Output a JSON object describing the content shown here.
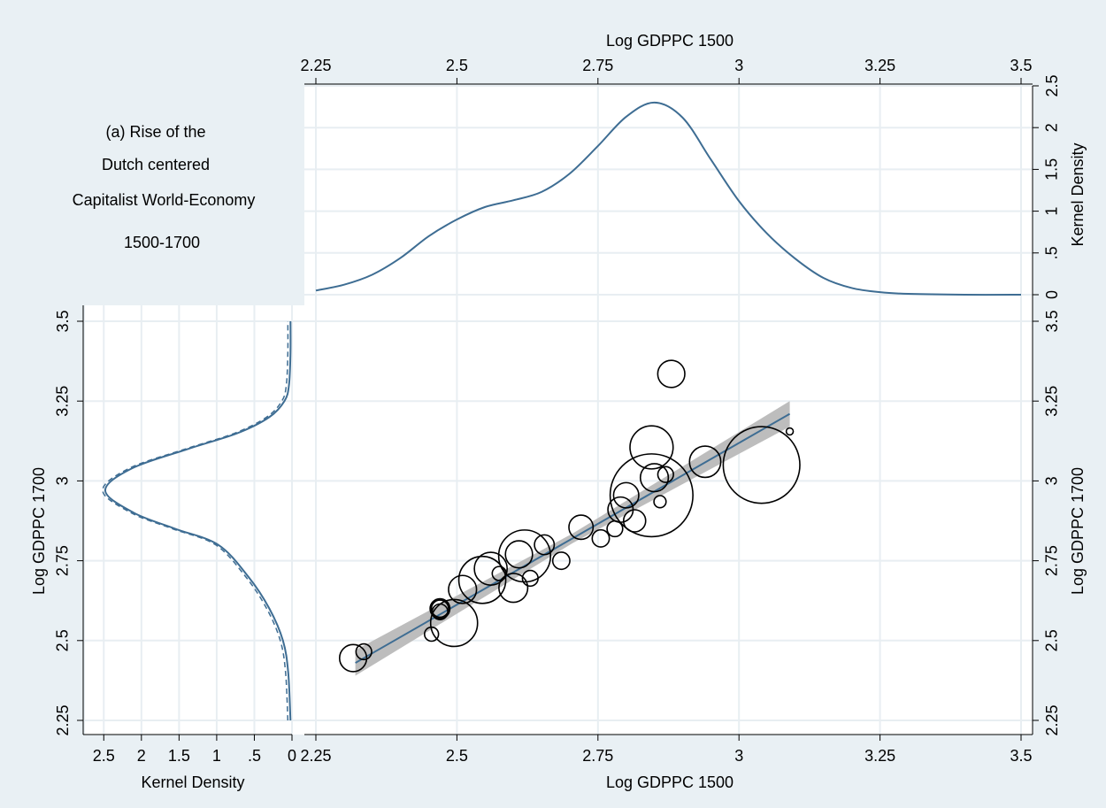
{
  "panel_title": {
    "lines": [
      "(a) Rise of the",
      "Dutch centered",
      "Capitalist World-Economy",
      "1500-1700"
    ]
  },
  "colors": {
    "frame_bg": "#e9f0f4",
    "panel_bg": "#ffffff",
    "grid": "#e8eef2",
    "line": "#3e6d93",
    "ci_band": "#bdbdbd",
    "circle": "#000000"
  },
  "chart_data": [
    {
      "type": "line",
      "name": "top-density",
      "xlabel": "Log GDPPC 1500",
      "ylabel": "Kernel Density",
      "xlim": [
        2.25,
        3.5
      ],
      "ylim": [
        0,
        2.5
      ],
      "xticks": [
        "2.25",
        "2.5",
        "2.75",
        "3",
        "3.25",
        "3.5"
      ],
      "yticks": [
        "0",
        ".5",
        "1",
        "1.5",
        "2",
        "2.5"
      ],
      "series": [
        {
          "x": [
            2.25,
            2.3,
            2.35,
            2.4,
            2.45,
            2.5,
            2.55,
            2.6,
            2.65,
            2.7,
            2.75,
            2.8,
            2.85,
            2.9,
            2.95,
            3.0,
            3.05,
            3.1,
            3.15,
            3.2,
            3.25,
            3.3,
            3.4,
            3.5
          ],
          "y": [
            0.05,
            0.12,
            0.24,
            0.44,
            0.7,
            0.9,
            1.05,
            1.13,
            1.23,
            1.45,
            1.78,
            2.13,
            2.3,
            2.12,
            1.62,
            1.12,
            0.73,
            0.43,
            0.2,
            0.08,
            0.03,
            0.01,
            0,
            0
          ]
        }
      ]
    },
    {
      "type": "line",
      "name": "left-density",
      "xlabel": "Kernel Density",
      "ylabel": "Log GDPPC 1700",
      "xlim": [
        0,
        2.75
      ],
      "ylim": [
        2.25,
        3.5
      ],
      "xticks": [
        "2.5",
        "2",
        "1.5",
        "1",
        ".5",
        "0"
      ],
      "yticks": [
        "2.25",
        "2.5",
        "2.75",
        "3",
        "3.25",
        "3.5"
      ],
      "series": [
        {
          "density": [
            0.02,
            0.05,
            0.12,
            0.3,
            0.58,
            0.98,
            1.55,
            2.1,
            2.48,
            2.12,
            1.38,
            0.72,
            0.3,
            0.1,
            0.04,
            0.02,
            0.02
          ],
          "y": [
            2.25,
            2.4,
            2.5,
            2.6,
            2.7,
            2.8,
            2.85,
            2.9,
            2.97,
            3.04,
            3.1,
            3.15,
            3.2,
            3.25,
            3.3,
            3.4,
            3.5
          ]
        }
      ]
    },
    {
      "type": "scatter",
      "name": "main-scatter",
      "xlabel": "Log GDPPC 1500",
      "ylabel": "Log GDPPC 1700",
      "xlim": [
        2.25,
        3.5
      ],
      "ylim": [
        2.25,
        3.5
      ],
      "xticks": [
        "2.25",
        "2.5",
        "2.75",
        "3",
        "3.25",
        "3.5"
      ],
      "yticks": [
        "2.25",
        "2.5",
        "2.75",
        "3",
        "3.25",
        "3.5"
      ],
      "fit": {
        "x": [
          2.32,
          3.09
        ],
        "y": [
          2.43,
          3.21
        ],
        "ci_half_width": [
          0.04,
          0.015,
          0.04
        ]
      },
      "points": [
        {
          "x": 2.316,
          "y": 2.445,
          "w": 1.5
        },
        {
          "x": 2.335,
          "y": 2.465,
          "w": 0.5
        },
        {
          "x": 2.455,
          "y": 2.52,
          "w": 0.4
        },
        {
          "x": 2.47,
          "y": 2.6,
          "w": 0.8
        },
        {
          "x": 2.47,
          "y": 2.6,
          "w": 0.6
        },
        {
          "x": 2.47,
          "y": 2.59,
          "w": 0.5
        },
        {
          "x": 2.495,
          "y": 2.555,
          "w": 4.5
        },
        {
          "x": 2.51,
          "y": 2.66,
          "w": 1.6
        },
        {
          "x": 2.545,
          "y": 2.69,
          "w": 4.5
        },
        {
          "x": 2.56,
          "y": 2.725,
          "w": 2.2
        },
        {
          "x": 2.575,
          "y": 2.71,
          "w": 0.4
        },
        {
          "x": 2.6,
          "y": 2.665,
          "w": 1.7
        },
        {
          "x": 2.62,
          "y": 2.765,
          "w": 5.5
        },
        {
          "x": 2.61,
          "y": 2.77,
          "w": 1.5
        },
        {
          "x": 2.63,
          "y": 2.695,
          "w": 0.5
        },
        {
          "x": 2.655,
          "y": 2.8,
          "w": 0.8
        },
        {
          "x": 2.685,
          "y": 2.75,
          "w": 0.6
        },
        {
          "x": 2.72,
          "y": 2.855,
          "w": 1.2
        },
        {
          "x": 2.755,
          "y": 2.82,
          "w": 0.6
        },
        {
          "x": 2.78,
          "y": 2.85,
          "w": 0.5
        },
        {
          "x": 2.79,
          "y": 2.91,
          "w": 1.3
        },
        {
          "x": 2.8,
          "y": 2.955,
          "w": 1.3
        },
        {
          "x": 2.815,
          "y": 2.875,
          "w": 1.0
        },
        {
          "x": 2.845,
          "y": 2.955,
          "w": 14.0
        },
        {
          "x": 2.85,
          "y": 3.01,
          "w": 1.6
        },
        {
          "x": 2.845,
          "y": 3.105,
          "w": 3.8
        },
        {
          "x": 2.86,
          "y": 2.935,
          "w": 0.3
        },
        {
          "x": 2.87,
          "y": 3.02,
          "w": 0.5
        },
        {
          "x": 2.88,
          "y": 3.335,
          "w": 1.5
        },
        {
          "x": 2.94,
          "y": 3.06,
          "w": 2.0
        },
        {
          "x": 3.04,
          "y": 3.05,
          "w": 12.0
        },
        {
          "x": 3.09,
          "y": 3.155,
          "w": 0.1
        }
      ]
    }
  ]
}
